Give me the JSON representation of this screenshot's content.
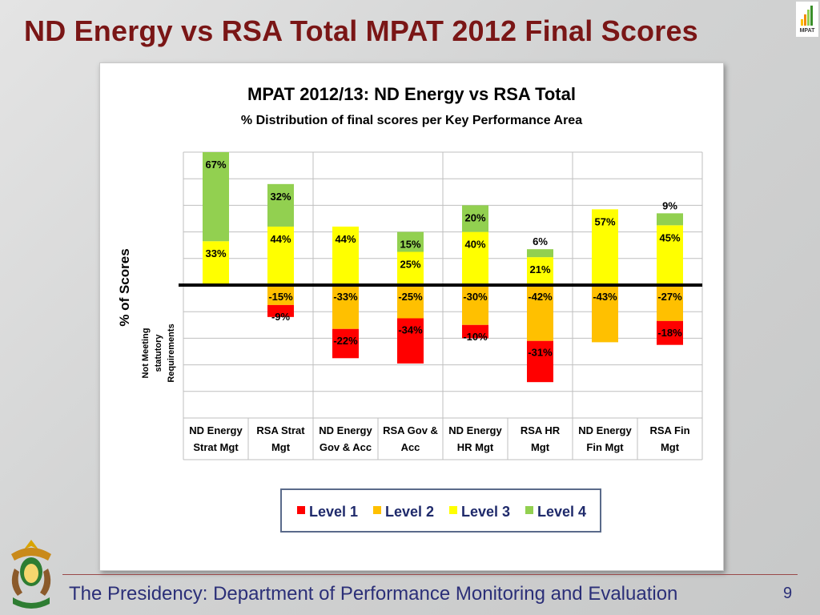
{
  "slide": {
    "title": "ND Energy vs RSA Total MPAT 2012 Final Scores",
    "footer": "The Presidency: Department of Performance Monitoring and Evaluation",
    "page_number": "9",
    "logo_text": "MPAT"
  },
  "colors": {
    "title": "#7a1616",
    "footer": "#2b2f78",
    "level1": "#ff0000",
    "level2": "#ffc000",
    "level3": "#ffff00",
    "level4": "#92d050"
  },
  "chart_data": {
    "type": "bar",
    "title": "MPAT 2012/13: ND Energy vs RSA Total",
    "subtitle": "% Distribution of final scores per Key Performance Area",
    "ylabel": "% of Scores",
    "ylabel_sub": "Not Meeting statutory Requirements",
    "categories": [
      [
        "ND Energy",
        "Strat Mgt"
      ],
      [
        "RSA Strat",
        "Mgt"
      ],
      [
        "ND Energy",
        "Gov & Acc"
      ],
      [
        "RSA Gov &",
        "Acc"
      ],
      [
        "ND Energy",
        "HR Mgt"
      ],
      [
        "RSA HR",
        "Mgt"
      ],
      [
        "ND Energy",
        "Fin Mgt"
      ],
      [
        "RSA Fin",
        "Mgt"
      ]
    ],
    "ylim": [
      -80,
      100
    ],
    "grid": true,
    "legend_position": "bottom",
    "series": [
      {
        "name": "Level 1",
        "values": [
          0,
          -9,
          -22,
          -34,
          -10,
          -31,
          0,
          -18
        ],
        "labels": [
          "",
          "-9%",
          "-22%",
          "-34%",
          "-10%",
          "-31%",
          "",
          "-18%"
        ]
      },
      {
        "name": "Level 2",
        "values": [
          0,
          -15,
          -33,
          -25,
          -30,
          -42,
          -43,
          -27
        ],
        "labels": [
          "",
          "-15%",
          "-33%",
          "-25%",
          "-30%",
          "-42%",
          "-43%",
          "-27%"
        ]
      },
      {
        "name": "Level 3",
        "values": [
          33,
          44,
          44,
          25,
          40,
          21,
          57,
          45
        ],
        "labels": [
          "33%",
          "44%",
          "44%",
          "25%",
          "40%",
          "21%",
          "57%",
          "45%"
        ]
      },
      {
        "name": "Level 4",
        "values": [
          67,
          32,
          0,
          15,
          20,
          6,
          0,
          9
        ],
        "labels": [
          "67%",
          "32%",
          "",
          "15%",
          "20%",
          "6%",
          "",
          "9%"
        ]
      }
    ]
  }
}
